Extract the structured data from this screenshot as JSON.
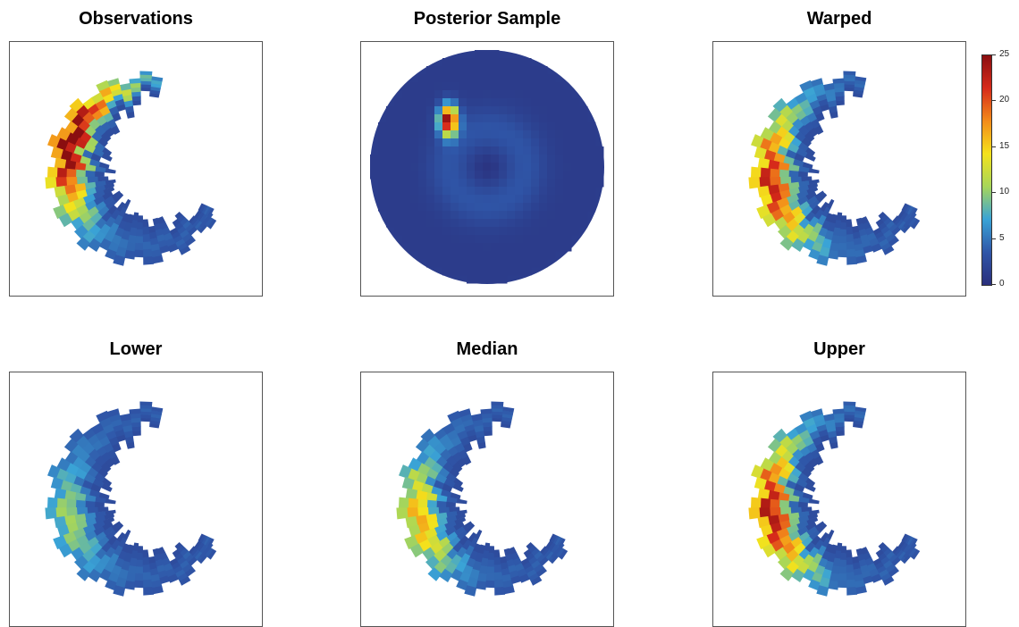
{
  "chart_data": [
    {
      "type": "heatmap",
      "title": "Observations",
      "shape": "crescent",
      "peak": 25,
      "hotspot_angle_deg": 155
    },
    {
      "type": "heatmap",
      "title": "Posterior Sample",
      "shape": "disc",
      "peak": 24,
      "hotspot_x": -0.33,
      "hotspot_y": -0.4
    },
    {
      "type": "heatmap",
      "title": "Warped",
      "shape": "crescent",
      "peak": 21,
      "hotspot_angle_deg": 185
    },
    {
      "type": "heatmap",
      "title": "Lower",
      "shape": "crescent",
      "peak": 9,
      "hotspot_angle_deg": 190
    },
    {
      "type": "heatmap",
      "title": "Median",
      "shape": "crescent",
      "peak": 15,
      "hotspot_angle_deg": 190
    },
    {
      "type": "heatmap",
      "title": "Upper",
      "shape": "crescent",
      "peak": 22,
      "hotspot_angle_deg": 185
    }
  ],
  "colorbar": {
    "ticks": [
      0,
      5,
      10,
      15,
      20,
      25
    ],
    "min": 0,
    "max": 25,
    "colors": [
      "#2a2f7c",
      "#2f56a8",
      "#3aa3d6",
      "#a7d65a",
      "#f4e21c",
      "#f38b1a",
      "#d62a1a",
      "#8a0e10"
    ]
  }
}
